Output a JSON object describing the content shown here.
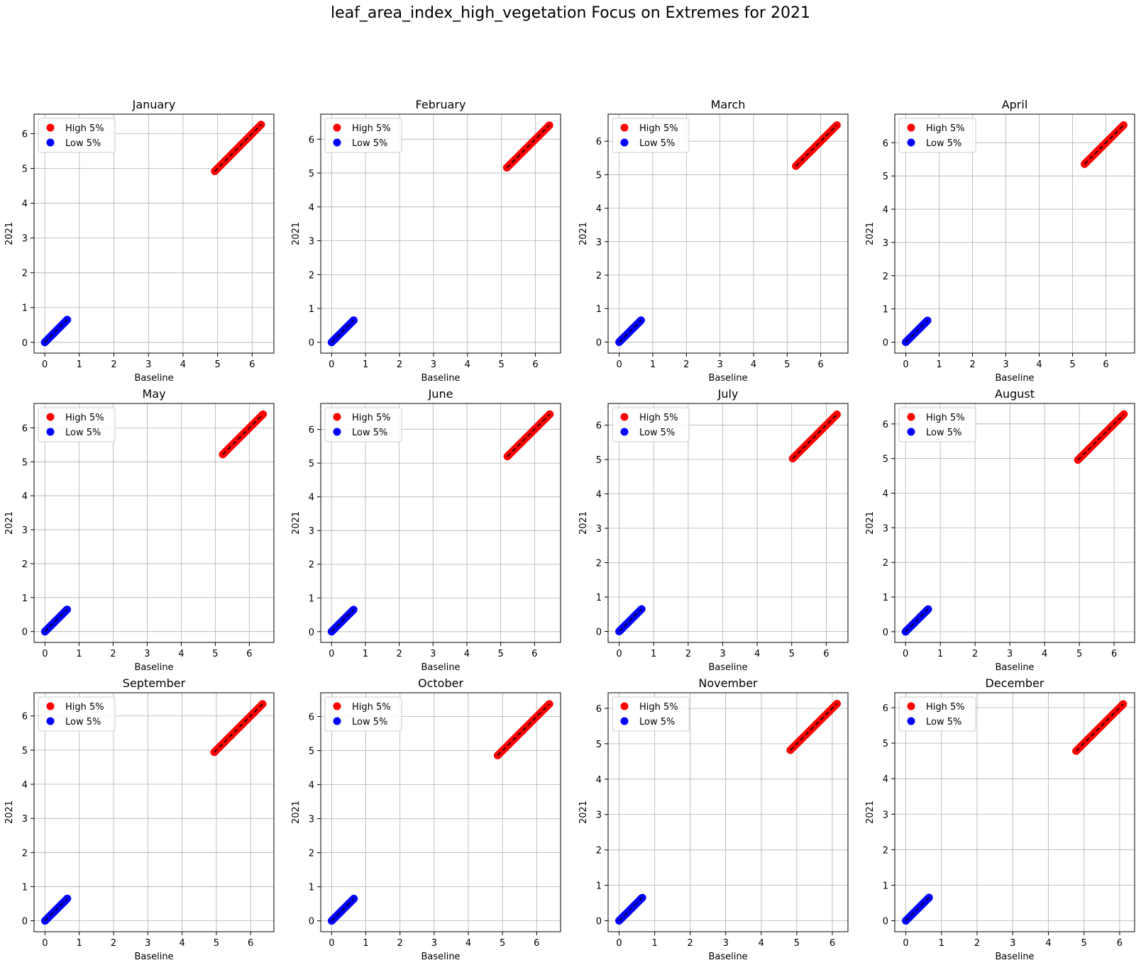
{
  "figure": {
    "suptitle": "leaf_area_index_high_vegetation Focus on Extremes for 2021"
  },
  "colors": {
    "high": "#ff0000",
    "low": "#0000ff",
    "line": "#000000",
    "grid": "#b0b0b0"
  },
  "chart_data": [
    {
      "type": "scatter",
      "title": "January",
      "xlabel": "Baseline",
      "ylabel": "2021",
      "xlim": [
        -0.31,
        6.63
      ],
      "ylim": [
        -0.31,
        6.56
      ],
      "xticks": [
        0,
        1,
        2,
        3,
        4,
        5,
        6
      ],
      "yticks": [
        0,
        1,
        2,
        3,
        4,
        5,
        6
      ],
      "grid": true,
      "legend": "upper left",
      "series": [
        {
          "name": "High 5%",
          "color": "#ff0000",
          "x_range": [
            4.92,
            6.26
          ],
          "y_range": [
            4.92,
            6.26
          ]
        },
        {
          "name": "Low 5%",
          "color": "#0000ff",
          "x_range": [
            0.0,
            0.65
          ],
          "y_range": [
            0.0,
            0.65
          ]
        }
      ],
      "reference_line": "y = x (dashed)"
    },
    {
      "type": "scatter",
      "title": "February",
      "xlabel": "Baseline",
      "ylabel": "2021",
      "xlim": [
        -0.32,
        6.74
      ],
      "ylim": [
        -0.32,
        6.74
      ],
      "xticks": [
        0,
        1,
        2,
        3,
        4,
        5,
        6
      ],
      "yticks": [
        0,
        1,
        2,
        3,
        4,
        5,
        6
      ],
      "grid": true,
      "legend": "upper left",
      "series": [
        {
          "name": "High 5%",
          "color": "#ff0000",
          "x_range": [
            5.16,
            6.41
          ],
          "y_range": [
            5.16,
            6.41
          ]
        },
        {
          "name": "Low 5%",
          "color": "#0000ff",
          "x_range": [
            0.0,
            0.65
          ],
          "y_range": [
            0.0,
            0.65
          ]
        }
      ],
      "reference_line": "y = x (dashed)"
    },
    {
      "type": "scatter",
      "title": "March",
      "xlabel": "Baseline",
      "ylabel": "2021",
      "xlim": [
        -0.33,
        6.81
      ],
      "ylim": [
        -0.33,
        6.81
      ],
      "xticks": [
        0,
        1,
        2,
        3,
        4,
        5,
        6
      ],
      "yticks": [
        0,
        1,
        2,
        3,
        4,
        5,
        6
      ],
      "grid": true,
      "legend": "upper left",
      "series": [
        {
          "name": "High 5%",
          "color": "#ff0000",
          "x_range": [
            5.26,
            6.48
          ],
          "y_range": [
            5.26,
            6.48
          ]
        },
        {
          "name": "Low 5%",
          "color": "#0000ff",
          "x_range": [
            0.0,
            0.65
          ],
          "y_range": [
            0.0,
            0.65
          ]
        }
      ],
      "reference_line": "y = x (dashed)"
    },
    {
      "type": "scatter",
      "title": "April",
      "xlabel": "Baseline",
      "ylabel": "2021",
      "xlim": [
        -0.33,
        6.86
      ],
      "ylim": [
        -0.33,
        6.86
      ],
      "xticks": [
        0,
        1,
        2,
        3,
        4,
        5,
        6
      ],
      "yticks": [
        0,
        1,
        2,
        3,
        4,
        5,
        6
      ],
      "grid": true,
      "legend": "upper left",
      "series": [
        {
          "name": "High 5%",
          "color": "#ff0000",
          "x_range": [
            5.36,
            6.53
          ],
          "y_range": [
            5.36,
            6.53
          ]
        },
        {
          "name": "Low 5%",
          "color": "#0000ff",
          "x_range": [
            0.0,
            0.65
          ],
          "y_range": [
            0.0,
            0.65
          ]
        }
      ],
      "reference_line": "y = x (dashed)"
    },
    {
      "type": "scatter",
      "title": "May",
      "xlabel": "Baseline",
      "ylabel": "2021",
      "xlim": [
        -0.32,
        6.72
      ],
      "ylim": [
        -0.32,
        6.72
      ],
      "xticks": [
        0,
        1,
        2,
        3,
        4,
        5,
        6
      ],
      "yticks": [
        0,
        1,
        2,
        3,
        4,
        5,
        6
      ],
      "grid": true,
      "legend": "upper left",
      "series": [
        {
          "name": "High 5%",
          "color": "#ff0000",
          "x_range": [
            5.22,
            6.4
          ],
          "y_range": [
            5.22,
            6.4
          ]
        },
        {
          "name": "Low 5%",
          "color": "#0000ff",
          "x_range": [
            0.0,
            0.65
          ],
          "y_range": [
            0.0,
            0.65
          ]
        }
      ],
      "reference_line": "y = x (dashed)"
    },
    {
      "type": "scatter",
      "title": "June",
      "xlabel": "Baseline",
      "ylabel": "2021",
      "xlim": [
        -0.32,
        6.77
      ],
      "ylim": [
        -0.32,
        6.77
      ],
      "xticks": [
        0,
        1,
        2,
        3,
        4,
        5,
        6
      ],
      "yticks": [
        0,
        1,
        2,
        3,
        4,
        5,
        6
      ],
      "grid": true,
      "legend": "upper left",
      "series": [
        {
          "name": "High 5%",
          "color": "#ff0000",
          "x_range": [
            5.2,
            6.45
          ],
          "y_range": [
            5.2,
            6.45
          ]
        },
        {
          "name": "Low 5%",
          "color": "#0000ff",
          "x_range": [
            0.0,
            0.65
          ],
          "y_range": [
            0.0,
            0.65
          ]
        }
      ],
      "reference_line": "y = x (dashed)"
    },
    {
      "type": "scatter",
      "title": "July",
      "xlabel": "Baseline",
      "ylabel": "2021",
      "xlim": [
        -0.32,
        6.63
      ],
      "ylim": [
        -0.32,
        6.63
      ],
      "xticks": [
        0,
        1,
        2,
        3,
        4,
        5,
        6
      ],
      "yticks": [
        0,
        1,
        2,
        3,
        4,
        5,
        6
      ],
      "grid": true,
      "legend": "upper left",
      "series": [
        {
          "name": "High 5%",
          "color": "#ff0000",
          "x_range": [
            5.03,
            6.31
          ],
          "y_range": [
            5.03,
            6.31
          ]
        },
        {
          "name": "Low 5%",
          "color": "#0000ff",
          "x_range": [
            0.0,
            0.65
          ],
          "y_range": [
            0.0,
            0.65
          ]
        }
      ],
      "reference_line": "y = x (dashed)"
    },
    {
      "type": "scatter",
      "title": "August",
      "xlabel": "Baseline",
      "ylabel": "2021",
      "xlim": [
        -0.31,
        6.59
      ],
      "ylim": [
        -0.31,
        6.59
      ],
      "xticks": [
        0,
        1,
        2,
        3,
        4,
        5,
        6
      ],
      "yticks": [
        0,
        1,
        2,
        3,
        4,
        5,
        6
      ],
      "grid": true,
      "legend": "upper left",
      "series": [
        {
          "name": "High 5%",
          "color": "#ff0000",
          "x_range": [
            4.96,
            6.28
          ],
          "y_range": [
            4.96,
            6.28
          ]
        },
        {
          "name": "Low 5%",
          "color": "#0000ff",
          "x_range": [
            0.0,
            0.65
          ],
          "y_range": [
            0.0,
            0.65
          ]
        }
      ],
      "reference_line": "y = x (dashed)"
    },
    {
      "type": "scatter",
      "title": "September",
      "xlabel": "Baseline",
      "ylabel": "2021",
      "xlim": [
        -0.32,
        6.68
      ],
      "ylim": [
        -0.32,
        6.68
      ],
      "xticks": [
        0,
        1,
        2,
        3,
        4,
        5,
        6
      ],
      "yticks": [
        0,
        1,
        2,
        3,
        4,
        5,
        6
      ],
      "grid": true,
      "legend": "upper left",
      "series": [
        {
          "name": "High 5%",
          "color": "#ff0000",
          "x_range": [
            4.94,
            6.35
          ],
          "y_range": [
            4.94,
            6.35
          ]
        },
        {
          "name": "Low 5%",
          "color": "#0000ff",
          "x_range": [
            0.0,
            0.65
          ],
          "y_range": [
            0.0,
            0.65
          ]
        }
      ],
      "reference_line": "y = x (dashed)"
    },
    {
      "type": "scatter",
      "title": "October",
      "xlabel": "Baseline",
      "ylabel": "2021",
      "xlim": [
        -0.32,
        6.7
      ],
      "ylim": [
        -0.32,
        6.7
      ],
      "xticks": [
        0,
        1,
        2,
        3,
        4,
        5,
        6
      ],
      "yticks": [
        0,
        1,
        2,
        3,
        4,
        5,
        6
      ],
      "grid": true,
      "legend": "upper left",
      "series": [
        {
          "name": "High 5%",
          "color": "#ff0000",
          "x_range": [
            4.86,
            6.37
          ],
          "y_range": [
            4.86,
            6.37
          ]
        },
        {
          "name": "Low 5%",
          "color": "#0000ff",
          "x_range": [
            0.0,
            0.65
          ],
          "y_range": [
            0.0,
            0.65
          ]
        }
      ],
      "reference_line": "y = x (dashed)"
    },
    {
      "type": "scatter",
      "title": "November",
      "xlabel": "Baseline",
      "ylabel": "2021",
      "xlim": [
        -0.31,
        6.44
      ],
      "ylim": [
        -0.31,
        6.44
      ],
      "xticks": [
        0,
        1,
        2,
        3,
        4,
        5,
        6
      ],
      "yticks": [
        0,
        1,
        2,
        3,
        4,
        5,
        6
      ],
      "grid": true,
      "legend": "upper left",
      "series": [
        {
          "name": "High 5%",
          "color": "#ff0000",
          "x_range": [
            4.82,
            6.13
          ],
          "y_range": [
            4.82,
            6.13
          ]
        },
        {
          "name": "Low 5%",
          "color": "#0000ff",
          "x_range": [
            0.0,
            0.65
          ],
          "y_range": [
            0.0,
            0.65
          ]
        }
      ],
      "reference_line": "y = x (dashed)"
    },
    {
      "type": "scatter",
      "title": "December",
      "xlabel": "Baseline",
      "ylabel": "2021",
      "xlim": [
        -0.31,
        6.42
      ],
      "ylim": [
        -0.31,
        6.42
      ],
      "xticks": [
        0,
        1,
        2,
        3,
        4,
        5,
        6
      ],
      "yticks": [
        0,
        1,
        2,
        3,
        4,
        5,
        6
      ],
      "grid": true,
      "legend": "upper left",
      "series": [
        {
          "name": "High 5%",
          "color": "#ff0000",
          "x_range": [
            4.78,
            6.1
          ],
          "y_range": [
            4.78,
            6.1
          ]
        },
        {
          "name": "Low 5%",
          "color": "#0000ff",
          "x_range": [
            0.0,
            0.65
          ],
          "y_range": [
            0.0,
            0.65
          ]
        }
      ],
      "reference_line": "y = x (dashed)"
    }
  ]
}
